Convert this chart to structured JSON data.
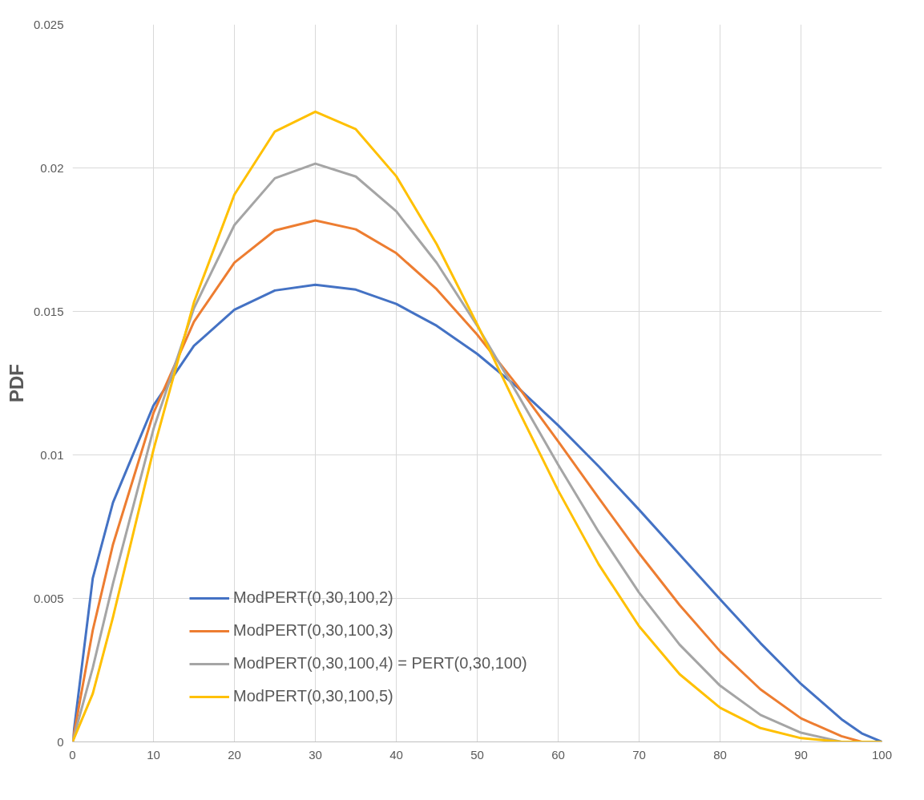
{
  "chart_data": {
    "type": "line",
    "ylabel": "PDF",
    "x": [
      0,
      2.5,
      5,
      10,
      15,
      20,
      25,
      30,
      35,
      40,
      45,
      50,
      55,
      60,
      65,
      70,
      75,
      80,
      85,
      90,
      95,
      97.5,
      100
    ],
    "series": [
      {
        "name": "ModPERT(0,30,100,2)",
        "color": "#4472c4",
        "values": [
          0,
          0.0057,
          0.00834,
          0.01172,
          0.0138,
          0.01506,
          0.01573,
          0.01593,
          0.01576,
          0.01526,
          0.0145,
          0.01352,
          0.01235,
          0.01103,
          0.0096,
          0.00809,
          0.00653,
          0.00497,
          0.00344,
          0.00202,
          0.00079,
          0.0003,
          0
        ]
      },
      {
        "name": "ModPERT(0,30,100,3)",
        "color": "#ed7d31",
        "values": [
          0,
          0.00389,
          0.00688,
          0.01146,
          0.01464,
          0.0167,
          0.01782,
          0.01817,
          0.01786,
          0.01703,
          0.01577,
          0.01419,
          0.0124,
          0.01047,
          0.0085,
          0.00657,
          0.00477,
          0.00316,
          0.00183,
          0.00082,
          0.0002,
          0,
          0
        ]
      },
      {
        "name": "ModPERT(0,30,100,4) = PERT(0,30,100)",
        "color": "#a5a5a5",
        "values": [
          0,
          0.00258,
          0.00552,
          0.0109,
          0.01511,
          0.01801,
          0.01964,
          0.02015,
          0.0197,
          0.01849,
          0.01669,
          0.0145,
          0.01211,
          0.00966,
          0.00732,
          0.0052,
          0.00339,
          0.00196,
          0.00094,
          0.00032,
          0,
          0,
          0
        ]
      },
      {
        "name": "ModPERT(0,30,100,5)",
        "color": "#ffc000",
        "values": [
          0,
          0.00168,
          0.00435,
          0.01018,
          0.01532,
          0.01907,
          0.02127,
          0.02196,
          0.02135,
          0.01971,
          0.01734,
          0.01455,
          0.01161,
          0.00876,
          0.00619,
          0.00403,
          0.00236,
          0.00119,
          0.00048,
          0.00013,
          0,
          0,
          0
        ]
      }
    ],
    "xlim": [
      0,
      100
    ],
    "xticks": [
      0,
      10,
      20,
      30,
      40,
      50,
      60,
      70,
      80,
      90,
      100
    ],
    "ylim": [
      0,
      0.025
    ],
    "yticks": [
      0,
      0.005,
      0.01,
      0.015,
      0.02,
      0.025
    ],
    "grid": true,
    "legend": "bottom left",
    "marker": "none",
    "line_style": "solid"
  }
}
